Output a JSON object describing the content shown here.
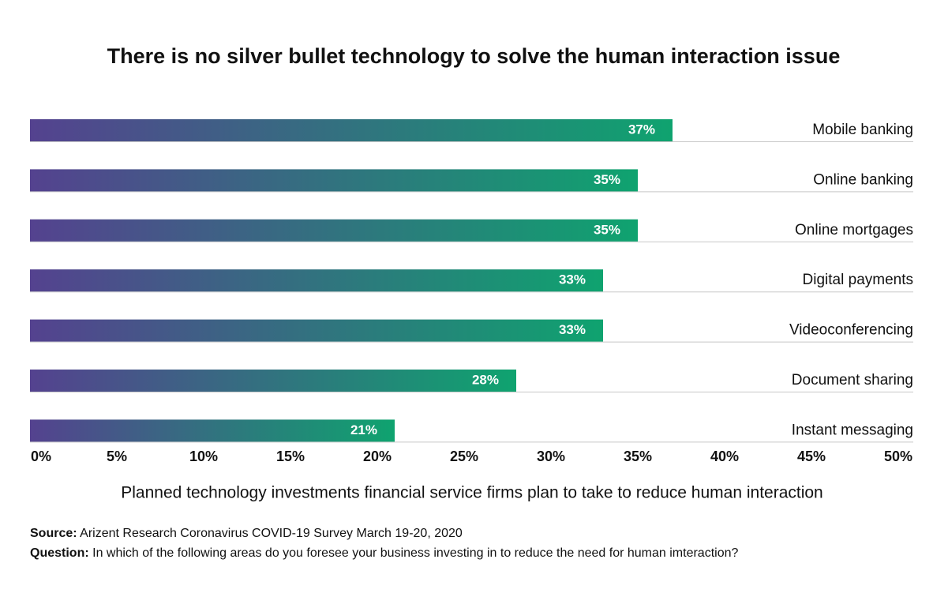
{
  "chart_data": {
    "type": "barh",
    "title": "There is no silver bullet technology to solve the human interaction issue",
    "x_label": "Planned technology investments financial service firms plan to take to reduce human interaction",
    "categories": [
      "Mobile banking",
      "Online banking",
      "Online mortgages",
      "Digital payments",
      "Videoconferencing",
      "Document sharing",
      "Instant messaging"
    ],
    "values": [
      37,
      35,
      35,
      33,
      33,
      28,
      21
    ],
    "value_labels": [
      "37%",
      "35%",
      "35%",
      "33%",
      "33%",
      "28%",
      "21%"
    ],
    "colors": [
      "#54428f",
      "#0fa36f"
    ],
    "xlim": [
      0,
      50
    ],
    "xticks": [
      {
        "value": 0,
        "label": "0%"
      },
      {
        "value": 5,
        "label": "5%"
      },
      {
        "value": 10,
        "label": "10%"
      },
      {
        "value": 15,
        "label": "15%"
      },
      {
        "value": 20,
        "label": "20%"
      },
      {
        "value": 25,
        "label": "25%"
      },
      {
        "value": 30,
        "label": "30%"
      },
      {
        "value": 35,
        "label": "35%"
      },
      {
        "value": 40,
        "label": "40%"
      },
      {
        "value": 45,
        "label": "45%"
      },
      {
        "value": 50,
        "label": "50%"
      }
    ]
  },
  "footer": {
    "source_label": "Source:",
    "source": "Arizent Research Coronavirus COVID-19 Survey March 19-20, 2020",
    "question_label": "Question:",
    "question": "In which of the following areas do you foresee your business investing in to reduce the need for human imteraction?"
  }
}
